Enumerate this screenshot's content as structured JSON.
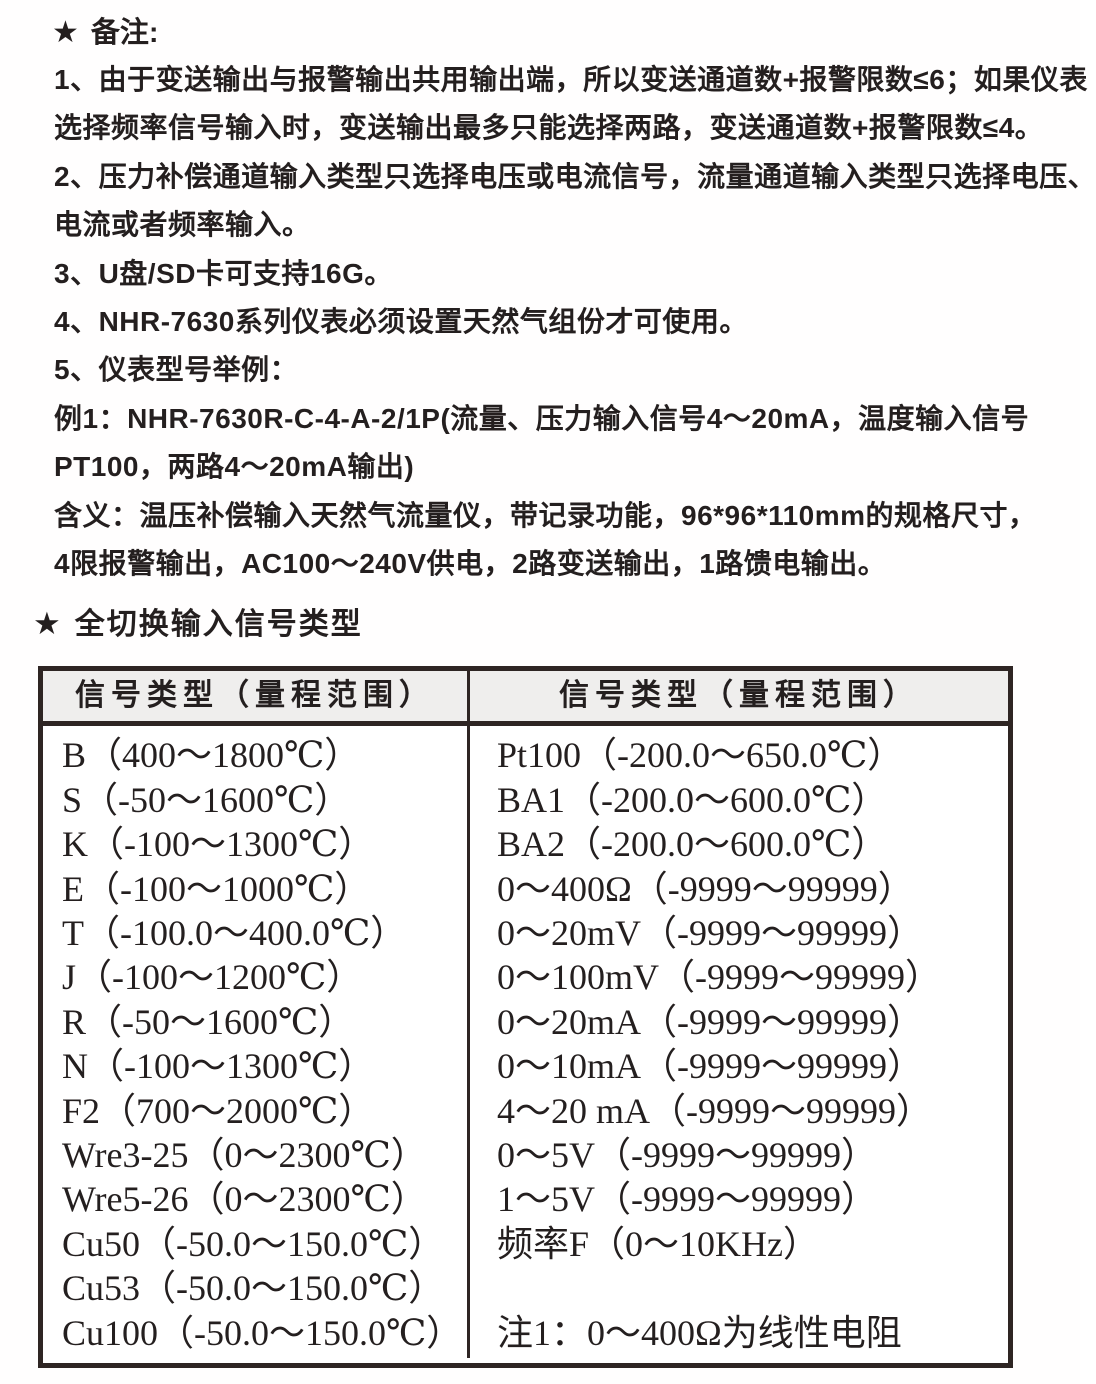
{
  "colors": {
    "ink": "#241f1f",
    "table_border": "#2e2523",
    "table_header_bg": "#efeeed",
    "page_bg": "#ffffff"
  },
  "notes": {
    "star": "★",
    "title": "备注:",
    "lines": [
      "1、由于变送输出与报警输出共用输出端，所以变送通道数+报警限数≤6；如果仪表",
      "选择频率信号输入时，变送输出最多只能选择两路，变送通道数+报警限数≤4。",
      "2、压力补偿通道输入类型只选择电压或电流信号，流量通道输入类型只选择电压、",
      "电流或者频率输入。",
      "3、U盘/SD卡可支持16G。",
      "4、NHR-7630系列仪表必须设置天然气组份才可使用。",
      "5、仪表型号举例：",
      "例1：NHR-7630R-C-4-A-2/1P(流量、压力输入信号4～20mA，温度输入信号",
      "PT100，两路4～20mA输出)",
      "含义：温压补偿输入天然气流量仪，带记录功能，96*96*110mm的规格尺寸，",
      "4限报警输出，AC100～240V供电，2路变送输出，1路馈电输出。"
    ]
  },
  "section": {
    "star": "★",
    "title": "全切换输入信号类型"
  },
  "table": {
    "headers": [
      "信号类型（量程范围）",
      "信号类型（量程范围）"
    ],
    "left_rows": [
      "B（400～1800℃）",
      "S（-50～1600℃）",
      "K（-100～1300℃）",
      "E（-100～1000℃）",
      "T（-100.0～400.0℃）",
      "J（-100～1200℃）",
      "R（-50～1600℃）",
      "N（-100～1300℃）",
      "F2（700～2000℃）",
      "Wre3-25（0～2300℃）",
      "Wre5-26（0～2300℃）",
      "Cu50（-50.0～150.0℃）",
      "Cu53（-50.0～150.0℃）",
      "Cu100（-50.0～150.0℃）"
    ],
    "right_rows": [
      "Pt100（-200.0～650.0℃）",
      "BA1（-200.0～600.0℃）",
      "BA2（-200.0～600.0℃）",
      "0～400Ω（-9999～99999）",
      "0～20mV（-9999～99999）",
      "0～100mV（-9999～99999）",
      "0～20mA（-9999～99999）",
      "0～10mA（-9999～99999）",
      "4～20 mA（-9999～99999）",
      "0～5V（-9999～99999）",
      "1～5V（-9999～99999）",
      "频率F（0～10KHz）",
      "",
      "注1：0～400Ω为线性电阻"
    ]
  }
}
